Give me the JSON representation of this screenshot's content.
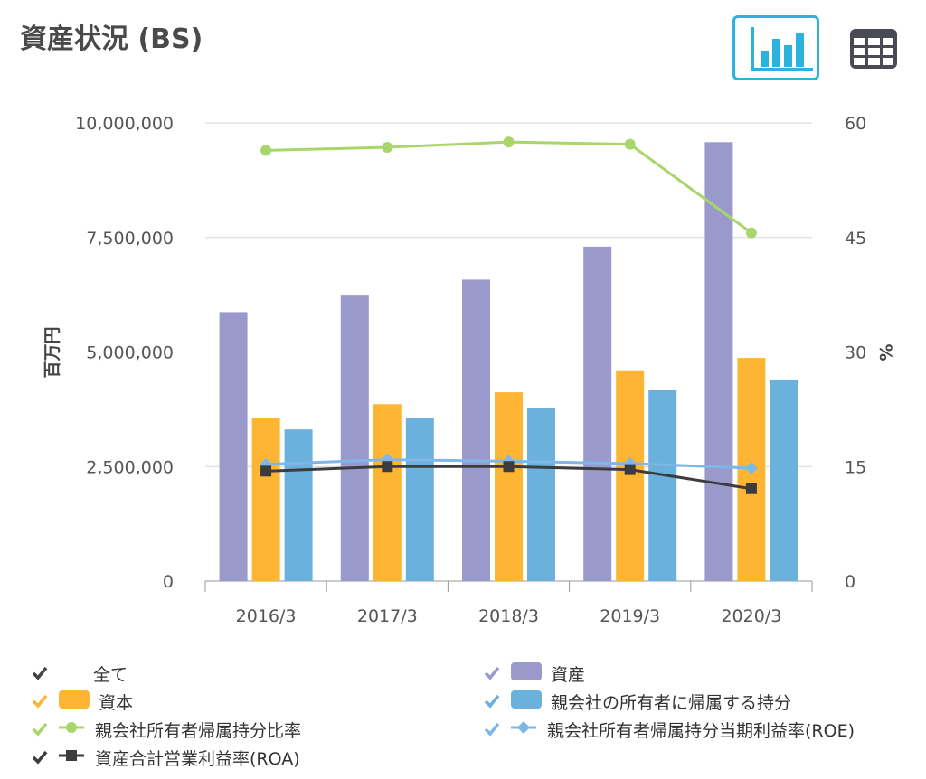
{
  "header": {
    "title": "資産状況 (BS)",
    "chart_view_icon": "bar-chart-icon",
    "table_view_icon": "table-grid-icon"
  },
  "chart_data": {
    "type": "bar",
    "categories": [
      "2016/3",
      "2017/3",
      "2018/3",
      "2019/3",
      "2020/3"
    ],
    "ylabel": "百万円",
    "y2label": "%",
    "ylim": [
      0,
      10000000
    ],
    "y2lim": [
      0,
      60
    ],
    "y_ticks": [
      "0",
      "2,500,000",
      "5,000,000",
      "7,500,000",
      "10,000,000"
    ],
    "y2_ticks": [
      "0",
      "15",
      "30",
      "45",
      "60"
    ],
    "grid": true,
    "legend_position": "bottom",
    "series": [
      {
        "name": "資産",
        "type": "bar",
        "axis": "left",
        "color": "#9999cc",
        "values": [
          5870000,
          6250000,
          6580000,
          7300000,
          9580000
        ]
      },
      {
        "name": "資本",
        "type": "bar",
        "axis": "left",
        "color": "#ffb534",
        "values": [
          3560000,
          3860000,
          4120000,
          4600000,
          4870000
        ]
      },
      {
        "name": "親会社の所有者に帰属する持分",
        "type": "bar",
        "axis": "left",
        "color": "#6bb1de",
        "values": [
          3310000,
          3560000,
          3770000,
          4180000,
          4400000
        ]
      },
      {
        "name": "親会社所有者帰属持分比率",
        "type": "line",
        "axis": "right",
        "marker": "circle",
        "color": "#a8d66b",
        "values": [
          56.4,
          56.8,
          57.5,
          57.2,
          45.6
        ]
      },
      {
        "name": "親会社所有者帰属持分当期利益率(ROE)",
        "type": "line",
        "axis": "right",
        "marker": "diamond",
        "color": "#7fb6e8",
        "values": [
          15.3,
          15.9,
          15.7,
          15.4,
          14.8
        ]
      },
      {
        "name": "資産合計営業利益率(ROA)",
        "type": "line",
        "axis": "right",
        "marker": "square",
        "color": "#3c3c3c",
        "values": [
          14.4,
          15.0,
          15.0,
          14.6,
          12.1
        ]
      }
    ]
  },
  "legend": {
    "all_label": "全て",
    "all_check_color": "#444444",
    "items": [
      {
        "label": "資産",
        "color": "#9999cc",
        "kind": "bar"
      },
      {
        "label": "資本",
        "color": "#ffb534",
        "kind": "bar"
      },
      {
        "label": "親会社の所有者に帰属する持分",
        "color": "#6bb1de",
        "kind": "bar"
      },
      {
        "label": "親会社所有者帰属持分比率",
        "color": "#a8d66b",
        "kind": "circle"
      },
      {
        "label": "親会社所有者帰属持分当期利益率(ROE)",
        "color": "#7fb6e8",
        "kind": "diamond"
      },
      {
        "label": "資産合計営業利益率(ROA)",
        "color": "#3c3c3c",
        "kind": "square"
      }
    ]
  }
}
